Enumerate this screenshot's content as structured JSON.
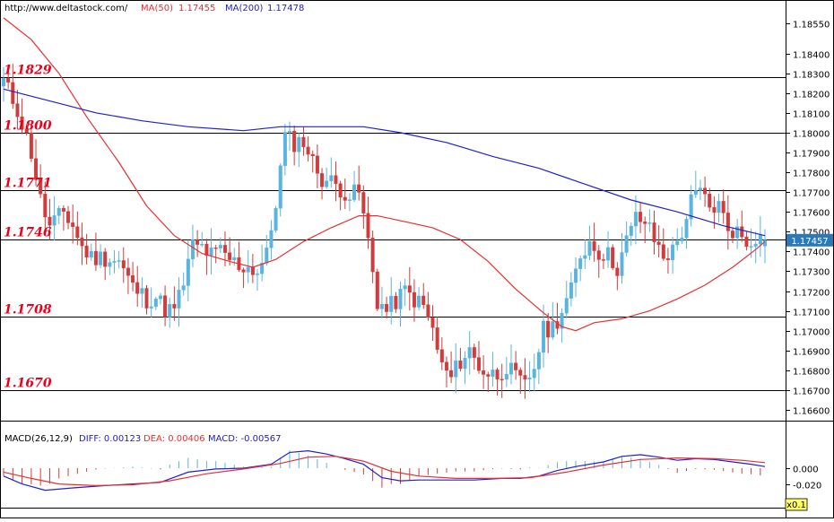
{
  "header": {
    "url": "http://www.deltastock.com/",
    "ma50_label": "MA(50)",
    "ma50_value": "1.17455",
    "ma200_label": "MA(200)",
    "ma200_value": "1.17478"
  },
  "macd_header": {
    "title": "MACD(26,12,9)",
    "diff": "DIFF: 0.00123",
    "dea": "DEA: 0.00406",
    "macd": "MACD: -0.00567"
  },
  "current_price": "1.17457",
  "scale_badge": "x0.1",
  "colors": {
    "bull": "#5ab4e0",
    "bear": "#d03c3c",
    "ma50": "#e83030",
    "ma200": "#2020d0",
    "level_text": "#e8001c"
  },
  "chart_data": [
    {
      "type": "candlestick",
      "ylim": [
        1.1655,
        1.1867
      ],
      "y_ticks": [
        "1.18550",
        "1.18400",
        "1.18300",
        "1.18200",
        "1.18100",
        "1.18000",
        "1.17900",
        "1.17800",
        "1.17700",
        "1.17600",
        "1.17500",
        "1.17400",
        "1.17300",
        "1.17200",
        "1.17100",
        "1.17000",
        "1.16900",
        "1.16800",
        "1.16700",
        "1.16600"
      ],
      "levels": [
        {
          "label": "1.1829",
          "value": 1.1828
        },
        {
          "label": "1.1800",
          "value": 1.18
        },
        {
          "label": "1.1771",
          "value": 1.1771
        },
        {
          "label": "1.1746",
          "value": 1.1746
        },
        {
          "label": "1.1708",
          "value": 1.1707
        },
        {
          "label": "1.1670",
          "value": 1.167
        }
      ],
      "close_path": [
        [
          0,
          1.1826
        ],
        [
          3,
          1.1812
        ],
        [
          6,
          1.179
        ],
        [
          8,
          1.1766
        ],
        [
          10,
          1.1752
        ],
        [
          13,
          1.176
        ],
        [
          15,
          1.1753
        ],
        [
          17,
          1.1742
        ],
        [
          19,
          1.1737
        ],
        [
          22,
          1.1737
        ],
        [
          25,
          1.1735
        ],
        [
          28,
          1.1722
        ],
        [
          31,
          1.1716
        ],
        [
          33,
          1.1717
        ],
        [
          35,
          1.1711
        ],
        [
          37,
          1.171
        ],
        [
          39,
          1.1724
        ],
        [
          41,
          1.1743
        ],
        [
          43,
          1.1742
        ],
        [
          45,
          1.1738
        ],
        [
          47,
          1.174
        ],
        [
          49,
          1.1736
        ],
        [
          51,
          1.1733
        ],
        [
          53,
          1.1732
        ],
        [
          55,
          1.173
        ],
        [
          57,
          1.1738
        ],
        [
          59,
          1.1765
        ],
        [
          61,
          1.1798
        ],
        [
          63,
          1.1795
        ],
        [
          65,
          1.1796
        ],
        [
          67,
          1.1785
        ],
        [
          69,
          1.1777
        ],
        [
          71,
          1.1775
        ],
        [
          73,
          1.1772
        ],
        [
          75,
          1.1768
        ],
        [
          77,
          1.177
        ],
        [
          79,
          1.1745
        ],
        [
          81,
          1.1715
        ],
        [
          83,
          1.171
        ],
        [
          85,
          1.1715
        ],
        [
          87,
          1.172
        ],
        [
          89,
          1.1716
        ],
        [
          91,
          1.1712
        ],
        [
          93,
          1.17
        ],
        [
          95,
          1.1682
        ],
        [
          97,
          1.1676
        ],
        [
          99,
          1.1685
        ],
        [
          101,
          1.169
        ],
        [
          103,
          1.1682
        ],
        [
          105,
          1.1678
        ],
        [
          107,
          1.1678
        ],
        [
          109,
          1.1682
        ],
        [
          111,
          1.1676
        ],
        [
          113,
          1.1672
        ],
        [
          115,
          1.1682
        ],
        [
          117,
          1.17
        ],
        [
          119,
          1.1702
        ],
        [
          121,
          1.171
        ],
        [
          123,
          1.172
        ],
        [
          125,
          1.1738
        ],
        [
          127,
          1.1745
        ],
        [
          129,
          1.174
        ],
        [
          131,
          1.1738
        ],
        [
          133,
          1.1732
        ],
        [
          135,
          1.1745
        ],
        [
          137,
          1.1757
        ],
        [
          139,
          1.1755
        ],
        [
          141,
          1.1746
        ],
        [
          143,
          1.1738
        ],
        [
          145,
          1.174
        ],
        [
          147,
          1.175
        ],
        [
          149,
          1.1765
        ],
        [
          151,
          1.177
        ],
        [
          153,
          1.1762
        ],
        [
          155,
          1.1763
        ],
        [
          157,
          1.1752
        ],
        [
          159,
          1.175
        ],
        [
          161,
          1.1745
        ],
        [
          163,
          1.1748
        ],
        [
          165,
          1.1745
        ]
      ],
      "candle_count": 166,
      "last_candle": {
        "open": 1.17428,
        "high": 1.17462,
        "low": 1.174,
        "close": 1.17457
      },
      "series": [
        {
          "name": "MA(50)",
          "path": [
            [
              0,
              1.1858
            ],
            [
              6,
              1.1847
            ],
            [
              12,
              1.183
            ],
            [
              18,
              1.1808
            ],
            [
              25,
              1.1785
            ],
            [
              31,
              1.1763
            ],
            [
              37,
              1.1748
            ],
            [
              43,
              1.1739
            ],
            [
              49,
              1.1735
            ],
            [
              54,
              1.1732
            ],
            [
              59,
              1.1736
            ],
            [
              65,
              1.1745
            ],
            [
              71,
              1.1752
            ],
            [
              77,
              1.1758
            ],
            [
              81,
              1.1758
            ],
            [
              87,
              1.1755
            ],
            [
              93,
              1.1752
            ],
            [
              99,
              1.1746
            ],
            [
              105,
              1.1735
            ],
            [
              111,
              1.1721
            ],
            [
              117,
              1.1709
            ],
            [
              121,
              1.1702
            ],
            [
              124,
              1.17
            ],
            [
              128,
              1.1704
            ],
            [
              134,
              1.1706
            ],
            [
              140,
              1.171
            ],
            [
              146,
              1.1716
            ],
            [
              152,
              1.1723
            ],
            [
              158,
              1.1732
            ],
            [
              163,
              1.1741
            ],
            [
              165,
              1.1745
            ]
          ]
        },
        {
          "name": "MA(200)",
          "path": [
            [
              0,
              1.1822
            ],
            [
              10,
              1.1816
            ],
            [
              20,
              1.181
            ],
            [
              30,
              1.1806
            ],
            [
              40,
              1.1803
            ],
            [
              52,
              1.1801
            ],
            [
              60,
              1.1803
            ],
            [
              70,
              1.1803
            ],
            [
              78,
              1.1803
            ],
            [
              86,
              1.18
            ],
            [
              96,
              1.1795
            ],
            [
              106,
              1.1788
            ],
            [
              116,
              1.1782
            ],
            [
              126,
              1.1774
            ],
            [
              136,
              1.1766
            ],
            [
              146,
              1.176
            ],
            [
              156,
              1.1753
            ],
            [
              165,
              1.1748
            ]
          ]
        }
      ]
    },
    {
      "type": "macd",
      "ylim": [
        -0.05,
        0.05
      ],
      "y_ticks": [
        "0.000",
        "-0.020"
      ],
      "series": [
        {
          "name": "DIFF",
          "path": [
            [
              0,
              -0.01
            ],
            [
              4,
              -0.02
            ],
            [
              9,
              -0.028
            ],
            [
              15,
              -0.025
            ],
            [
              22,
              -0.022
            ],
            [
              28,
              -0.02
            ],
            [
              34,
              -0.018
            ],
            [
              40,
              -0.005
            ],
            [
              46,
              -0.001
            ],
            [
              52,
              0.0
            ],
            [
              58,
              0.005
            ],
            [
              62,
              0.02
            ],
            [
              66,
              0.022
            ],
            [
              70,
              0.018
            ],
            [
              74,
              0.012
            ],
            [
              78,
              0.005
            ],
            [
              82,
              -0.012
            ],
            [
              86,
              -0.016
            ],
            [
              90,
              -0.015
            ],
            [
              96,
              -0.015
            ],
            [
              102,
              -0.015
            ],
            [
              108,
              -0.013
            ],
            [
              112,
              -0.013
            ],
            [
              116,
              -0.01
            ],
            [
              120,
              -0.003
            ],
            [
              124,
              0.002
            ],
            [
              130,
              0.008
            ],
            [
              134,
              0.015
            ],
            [
              138,
              0.017
            ],
            [
              142,
              0.014
            ],
            [
              146,
              0.01
            ],
            [
              150,
              0.012
            ],
            [
              154,
              0.011
            ],
            [
              158,
              0.008
            ],
            [
              162,
              0.005
            ],
            [
              165,
              0.002
            ]
          ]
        },
        {
          "name": "DEA",
          "path": [
            [
              0,
              -0.005
            ],
            [
              6,
              -0.013
            ],
            [
              12,
              -0.02
            ],
            [
              20,
              -0.022
            ],
            [
              28,
              -0.021
            ],
            [
              36,
              -0.016
            ],
            [
              44,
              -0.007
            ],
            [
              52,
              -0.001
            ],
            [
              60,
              0.006
            ],
            [
              66,
              0.014
            ],
            [
              72,
              0.015
            ],
            [
              78,
              0.009
            ],
            [
              84,
              -0.004
            ],
            [
              90,
              -0.01
            ],
            [
              98,
              -0.013
            ],
            [
              106,
              -0.013
            ],
            [
              114,
              -0.012
            ],
            [
              122,
              -0.005
            ],
            [
              130,
              0.004
            ],
            [
              138,
              0.011
            ],
            [
              146,
              0.013
            ],
            [
              154,
              0.012
            ],
            [
              160,
              0.01
            ],
            [
              165,
              0.007
            ]
          ]
        }
      ]
    }
  ]
}
